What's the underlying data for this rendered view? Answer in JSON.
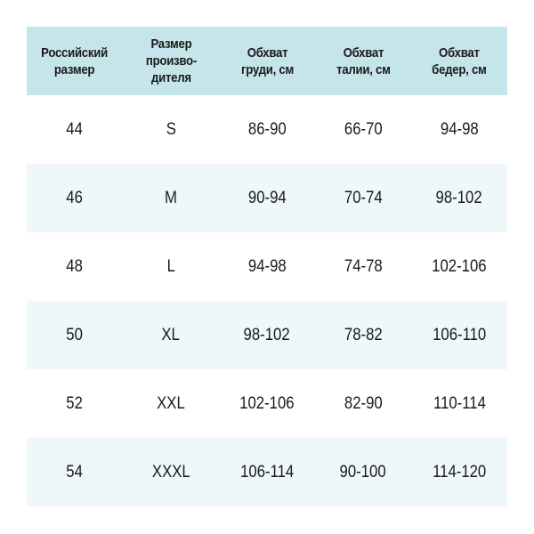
{
  "table": {
    "headers": [
      "Российский\nразмер",
      "Размер\nпроизво-\nдителя",
      "Обхват\nгруди, см",
      "Обхват\nталии, см",
      "Обхват\nбедер, см"
    ],
    "rows": [
      [
        "44",
        "S",
        "86-90",
        "66-70",
        "94-98"
      ],
      [
        "46",
        "M",
        "90-94",
        "70-74",
        "98-102"
      ],
      [
        "48",
        "L",
        "94-98",
        "74-78",
        "102-106"
      ],
      [
        "50",
        "XL",
        "98-102",
        "78-82",
        "106-110"
      ],
      [
        "52",
        "XXL",
        "102-106",
        "82-90",
        "110-114"
      ],
      [
        "54",
        "XXXL",
        "106-114",
        "90-100",
        "114-120"
      ]
    ]
  },
  "colors": {
    "header_bg": "#c5e5eb",
    "alt_row_bg": "#eef7f9"
  }
}
